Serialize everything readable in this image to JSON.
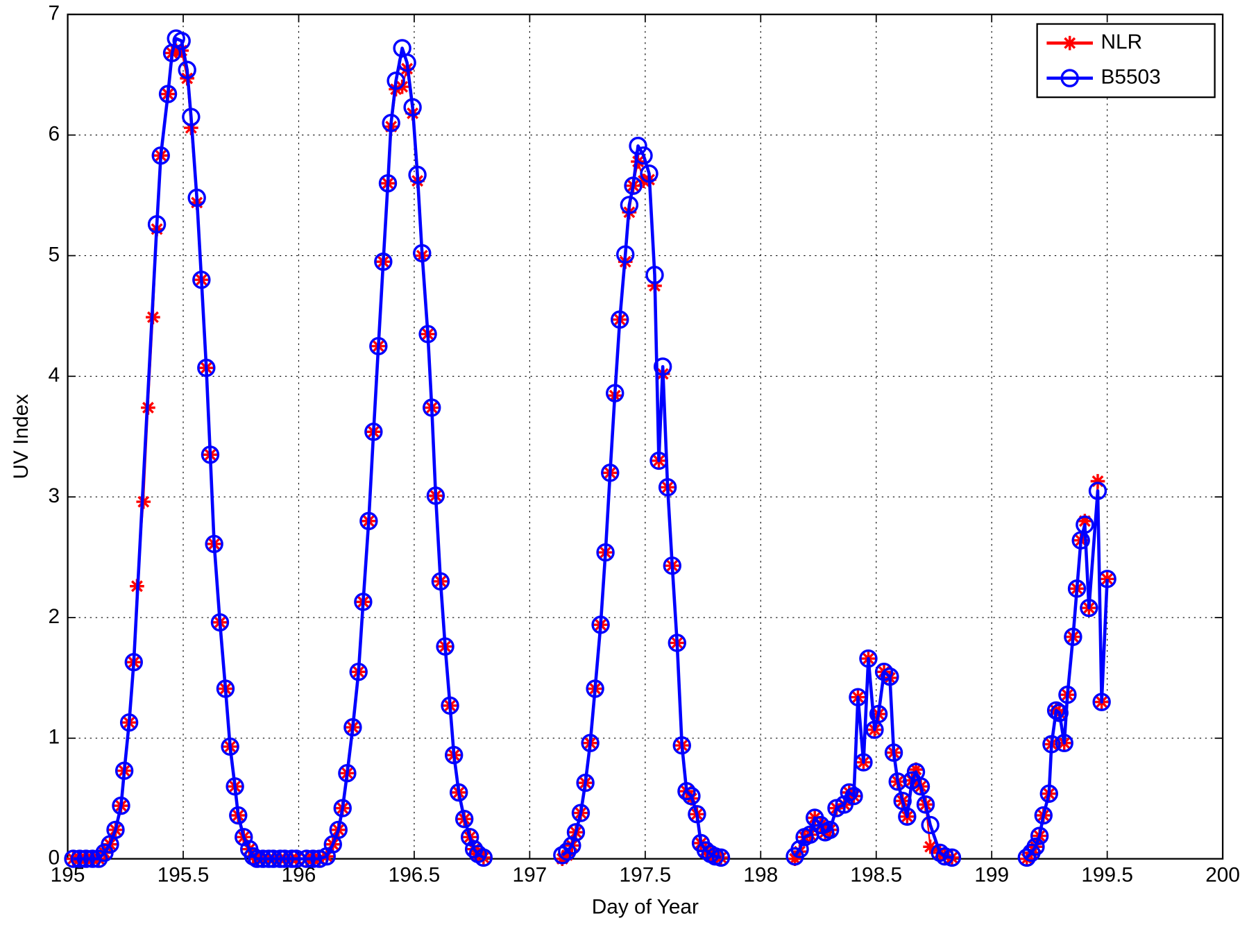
{
  "chart_data": {
    "type": "line",
    "xlabel": "Day of Year",
    "ylabel": "UV Index",
    "xlim": [
      195,
      200
    ],
    "ylim": [
      0,
      7
    ],
    "xticks": [
      195,
      195.5,
      196,
      196.5,
      197,
      197.5,
      198,
      198.5,
      199,
      199.5,
      200
    ],
    "yticks": [
      0,
      1,
      2,
      3,
      4,
      5,
      6,
      7
    ],
    "grid": true,
    "legend": "upper right",
    "series": [
      {
        "name": "NLR",
        "color": "#ff0000",
        "marker": "asterisk",
        "x": [
          195.024,
          195.052,
          195.079,
          195.107,
          195.134,
          195.159,
          195.183,
          195.207,
          195.231,
          195.245,
          195.266,
          195.286,
          195.3,
          195.328,
          195.348,
          195.369,
          195.386,
          195.403,
          195.434,
          195.452,
          195.469,
          195.493,
          195.517,
          195.534,
          195.559,
          195.579,
          195.6,
          195.617,
          195.634,
          195.659,
          195.683,
          195.703,
          195.724,
          195.738,
          195.762,
          195.786,
          195.803,
          195.82,
          195.845,
          195.87,
          195.89,
          195.92,
          195.94,
          195.97,
          195.99,
          196.034,
          196.062,
          196.09,
          196.121,
          196.148,
          196.172,
          196.19,
          196.21,
          196.234,
          196.259,
          196.279,
          196.303,
          196.324,
          196.345,
          196.366,
          196.386,
          196.4,
          196.421,
          196.448,
          196.469,
          196.493,
          196.514,
          196.534,
          196.559,
          196.576,
          196.593,
          196.614,
          196.634,
          196.655,
          196.672,
          196.693,
          196.717,
          196.741,
          196.759,
          196.776,
          196.8,
          null,
          197.141,
          197.162,
          197.183,
          197.2,
          197.221,
          197.241,
          197.262,
          197.283,
          197.307,
          197.328,
          197.348,
          197.369,
          197.39,
          197.414,
          197.431,
          197.448,
          197.469,
          197.493,
          197.517,
          197.541,
          197.559,
          197.576,
          197.597,
          197.617,
          197.638,
          197.659,
          197.679,
          197.7,
          197.724,
          197.741,
          197.762,
          197.783,
          197.803,
          197.828,
          null,
          198.148,
          198.169,
          198.19,
          198.214,
          198.234,
          198.259,
          198.279,
          198.3,
          198.328,
          198.362,
          198.383,
          198.403,
          198.421,
          198.445,
          198.466,
          198.493,
          198.51,
          198.534,
          198.559,
          198.576,
          198.593,
          198.614,
          198.634,
          198.655,
          198.672,
          198.693,
          198.714,
          198.734,
          198.776,
          198.797,
          198.828,
          null,
          199.152,
          199.172,
          199.19,
          199.207,
          199.224,
          199.248,
          199.259,
          199.279,
          199.293,
          199.314,
          199.328,
          199.352,
          199.369,
          199.386,
          199.403,
          199.421,
          199.459,
          199.476,
          199.5
        ],
        "values": [
          0,
          0,
          0,
          0,
          0,
          0.05,
          0.12,
          0.24,
          0.44,
          0.73,
          1.13,
          1.63,
          2.26,
          2.96,
          3.74,
          4.49,
          5.22,
          5.83,
          6.34,
          6.68,
          6.7,
          6.7,
          6.47,
          6.06,
          5.44,
          4.8,
          4.07,
          3.35,
          2.61,
          1.96,
          1.41,
          0.93,
          0.6,
          0.36,
          0.18,
          0.08,
          0.02,
          0,
          0,
          0,
          0,
          0,
          0,
          0,
          0,
          0,
          0,
          0,
          0.02,
          0.12,
          0.24,
          0.42,
          0.71,
          1.09,
          1.55,
          2.13,
          2.8,
          3.54,
          4.25,
          4.95,
          5.6,
          6.07,
          6.38,
          6.4,
          6.55,
          6.18,
          5.62,
          5.0,
          4.35,
          3.74,
          3.01,
          2.3,
          1.76,
          1.27,
          0.86,
          0.55,
          0.33,
          0.18,
          0.08,
          0.04,
          0.01,
          null,
          0.0,
          0.03,
          0.11,
          0.22,
          0.38,
          0.63,
          0.96,
          1.41,
          1.94,
          2.54,
          3.2,
          3.84,
          4.47,
          4.95,
          5.36,
          5.58,
          5.78,
          5.62,
          5.63,
          4.75,
          3.3,
          4.02,
          3.08,
          2.43,
          1.79,
          0.94,
          0.56,
          0.5,
          0.37,
          0.13,
          0.07,
          0.04,
          0.02,
          0.01,
          null,
          0.0,
          0.06,
          0.18,
          0.2,
          0.34,
          0.28,
          0.22,
          0.24,
          0.42,
          0.45,
          0.55,
          0.52,
          1.34,
          0.8,
          1.66,
          1.07,
          1.2,
          1.55,
          1.5,
          0.88,
          0.64,
          0.48,
          0.35,
          0.65,
          0.74,
          0.6,
          0.45,
          0.1,
          0.05,
          0.02,
          0.01,
          null,
          0.0,
          0.05,
          0.1,
          0.19,
          0.36,
          0.54,
          0.95,
          1.23,
          1.21,
          0.96,
          1.36,
          1.84,
          2.24,
          2.64,
          2.8,
          2.08,
          3.13,
          1.3,
          2.32
        ]
      },
      {
        "name": "B5503",
        "color": "#0000ff",
        "marker": "circle",
        "x": [
          195.024,
          195.052,
          195.079,
          195.107,
          195.134,
          195.159,
          195.183,
          195.207,
          195.231,
          195.245,
          195.266,
          195.286,
          195.386,
          195.403,
          195.434,
          195.452,
          195.469,
          195.493,
          195.517,
          195.534,
          195.559,
          195.579,
          195.6,
          195.617,
          195.634,
          195.659,
          195.683,
          195.703,
          195.724,
          195.738,
          195.762,
          195.786,
          195.803,
          195.82,
          195.845,
          195.87,
          195.89,
          195.92,
          195.94,
          195.97,
          195.99,
          196.034,
          196.062,
          196.09,
          196.121,
          196.148,
          196.172,
          196.19,
          196.21,
          196.234,
          196.259,
          196.279,
          196.303,
          196.324,
          196.345,
          196.366,
          196.386,
          196.4,
          196.421,
          196.448,
          196.469,
          196.493,
          196.514,
          196.534,
          196.559,
          196.576,
          196.593,
          196.614,
          196.634,
          196.655,
          196.672,
          196.693,
          196.717,
          196.741,
          196.759,
          196.776,
          196.8,
          null,
          197.141,
          197.162,
          197.183,
          197.2,
          197.221,
          197.241,
          197.262,
          197.283,
          197.307,
          197.328,
          197.348,
          197.369,
          197.39,
          197.414,
          197.431,
          197.448,
          197.469,
          197.493,
          197.517,
          197.541,
          197.559,
          197.576,
          197.597,
          197.617,
          197.638,
          197.659,
          197.679,
          197.7,
          197.724,
          197.741,
          197.762,
          197.783,
          197.803,
          197.828,
          null,
          198.148,
          198.169,
          198.19,
          198.214,
          198.234,
          198.259,
          198.279,
          198.3,
          198.328,
          198.362,
          198.383,
          198.403,
          198.421,
          198.445,
          198.466,
          198.493,
          198.51,
          198.534,
          198.559,
          198.576,
          198.593,
          198.614,
          198.634,
          198.655,
          198.672,
          198.693,
          198.714,
          198.734,
          198.776,
          198.797,
          198.828,
          null,
          199.152,
          199.172,
          199.19,
          199.207,
          199.224,
          199.248,
          199.259,
          199.279,
          199.293,
          199.314,
          199.328,
          199.352,
          199.369,
          199.386,
          199.403,
          199.421,
          199.459,
          199.476,
          199.5
        ],
        "values": [
          0,
          0,
          0,
          0,
          0,
          0.05,
          0.12,
          0.24,
          0.44,
          0.73,
          1.13,
          1.63,
          5.26,
          5.83,
          6.34,
          6.68,
          6.8,
          6.78,
          6.54,
          6.15,
          5.48,
          4.8,
          4.07,
          3.35,
          2.61,
          1.96,
          1.41,
          0.93,
          0.6,
          0.36,
          0.18,
          0.08,
          0.02,
          0,
          0,
          0,
          0,
          0,
          0,
          0,
          0,
          0,
          0,
          0,
          0.02,
          0.12,
          0.24,
          0.42,
          0.71,
          1.09,
          1.55,
          2.13,
          2.8,
          3.54,
          4.25,
          4.95,
          5.6,
          6.1,
          6.45,
          6.72,
          6.6,
          6.23,
          5.67,
          5.02,
          4.35,
          3.74,
          3.01,
          2.3,
          1.76,
          1.27,
          0.86,
          0.55,
          0.33,
          0.18,
          0.08,
          0.04,
          0.01,
          null,
          0.03,
          0.06,
          0.11,
          0.22,
          0.38,
          0.63,
          0.96,
          1.41,
          1.94,
          2.54,
          3.2,
          3.86,
          4.47,
          5.01,
          5.42,
          5.58,
          5.91,
          5.83,
          5.68,
          4.84,
          3.3,
          4.08,
          3.08,
          2.43,
          1.79,
          0.94,
          0.56,
          0.52,
          0.37,
          0.13,
          0.07,
          0.04,
          0.02,
          0.01,
          null,
          0.02,
          0.08,
          0.18,
          0.2,
          0.34,
          0.28,
          0.22,
          0.24,
          0.42,
          0.45,
          0.55,
          0.52,
          1.34,
          0.8,
          1.66,
          1.07,
          1.2,
          1.55,
          1.51,
          0.88,
          0.64,
          0.48,
          0.35,
          0.65,
          0.72,
          0.6,
          0.45,
          0.28,
          0.05,
          0.02,
          0.01,
          null,
          0.01,
          0.05,
          0.1,
          0.19,
          0.36,
          0.54,
          0.95,
          1.23,
          1.21,
          0.96,
          1.36,
          1.84,
          2.24,
          2.64,
          2.77,
          2.08,
          3.05,
          1.3,
          2.32
        ]
      }
    ]
  }
}
